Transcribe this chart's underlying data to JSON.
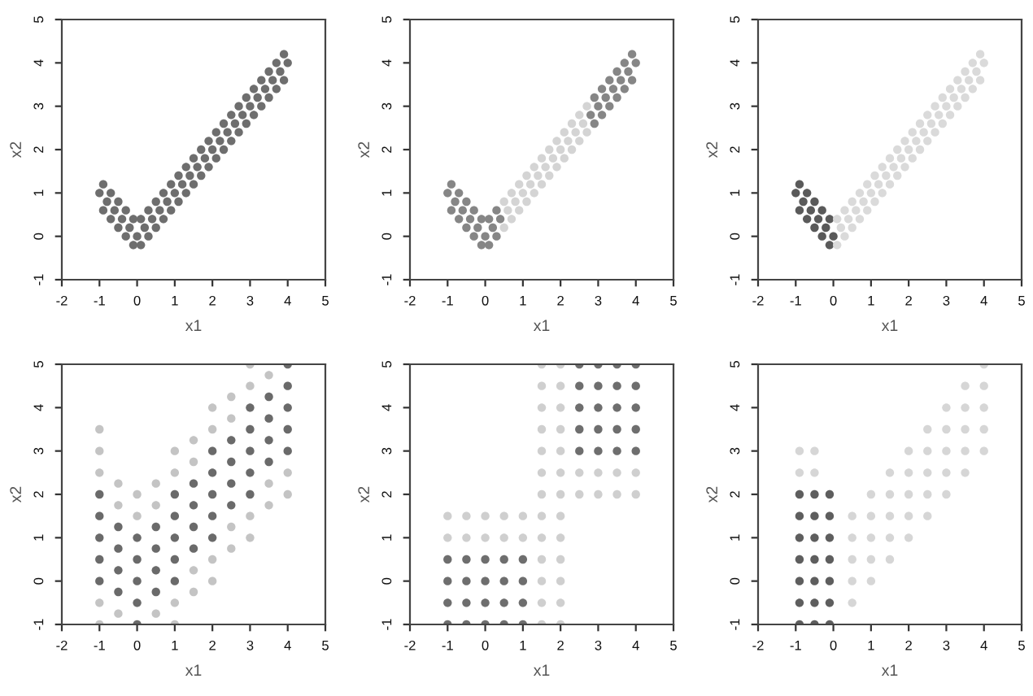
{
  "chart_data": [
    {
      "type": "scatter",
      "xlabel": "x1",
      "ylabel": "x2",
      "xlim": [
        -2,
        5
      ],
      "ylim": [
        -1,
        5
      ],
      "xticks": [
        -2,
        -1,
        0,
        1,
        2,
        3,
        4,
        5
      ],
      "yticks": [
        -1,
        0,
        1,
        2,
        3,
        4,
        5
      ],
      "marker": "circle",
      "series": [
        {
          "color": "#6e6e6e",
          "x": [
            -1,
            -0.8,
            -0.6,
            -0.4,
            -0.2,
            0,
            0.2,
            0.4,
            0.6,
            0.8,
            1,
            1.2,
            1.4,
            1.6,
            1.8,
            2,
            2.2,
            2.4,
            2.6,
            2.8,
            3,
            3.2,
            3.4,
            3.6,
            3.8,
            4,
            -0.9,
            -0.7,
            -0.5,
            -0.3,
            -0.1,
            0.1,
            0.3,
            0.5,
            0.7,
            0.9,
            1.1,
            1.3,
            1.5,
            1.7,
            1.9,
            2.1,
            2.3,
            2.5,
            2.7,
            2.9,
            3.1,
            3.3,
            3.5,
            3.7,
            3.9,
            -0.9,
            -0.7,
            -0.5,
            -0.3,
            -0.1,
            0.1,
            0.3,
            0.5,
            0.7,
            0.9,
            1.1,
            1.3,
            1.5,
            1.7,
            1.9,
            2.1,
            2.3,
            2.5,
            2.7,
            2.9,
            3.1,
            3.3,
            3.5,
            3.7,
            3.9
          ],
          "values": [
            1,
            0.8,
            0.6,
            0.4,
            0.2,
            0,
            0.2,
            0.4,
            0.6,
            0.8,
            1,
            1.2,
            1.4,
            1.6,
            1.8,
            2,
            2.2,
            2.4,
            2.6,
            2.8,
            3,
            3.2,
            3.4,
            3.6,
            3.8,
            4,
            0.6,
            0.4,
            0.2,
            0,
            -0.2,
            -0.2,
            0,
            0.2,
            0.4,
            0.6,
            0.8,
            1,
            1.2,
            1.4,
            1.6,
            1.8,
            2,
            2.2,
            2.4,
            2.6,
            2.8,
            3,
            3.2,
            3.4,
            3.6,
            1.2,
            1,
            0.8,
            0.6,
            0.4,
            0.4,
            0.6,
            0.8,
            1,
            1.2,
            1.4,
            1.6,
            1.8,
            2,
            2.2,
            2.4,
            2.6,
            2.8,
            3,
            3.2,
            3.4,
            3.6,
            3.8,
            4,
            4.2
          ]
        }
      ]
    },
    {
      "type": "scatter",
      "xlabel": "x1",
      "ylabel": "x2",
      "xlim": [
        -2,
        5
      ],
      "ylim": [
        -1,
        5
      ],
      "xticks": [
        -2,
        -1,
        0,
        1,
        2,
        3,
        4,
        5
      ],
      "yticks": [
        -1,
        0,
        1,
        2,
        3,
        4,
        5
      ],
      "marker": "circle",
      "series": [
        {
          "color": "#868686",
          "x": [
            -1,
            -0.8,
            -0.6,
            -0.4,
            -0.2,
            0,
            0.2,
            0.4,
            2.8,
            3,
            3.2,
            3.4,
            3.6,
            3.8,
            4,
            -0.9,
            -0.7,
            -0.5,
            -0.3,
            -0.1,
            0.1,
            0.3,
            2.9,
            3.1,
            3.3,
            3.5,
            3.7,
            3.9,
            -0.9,
            -0.7,
            -0.5,
            -0.3,
            -0.1,
            0.1,
            0.3,
            2.9,
            3.1,
            3.3,
            3.5,
            3.7,
            3.9
          ],
          "values": [
            1,
            0.8,
            0.6,
            0.4,
            0.2,
            0,
            0.2,
            0.4,
            2.8,
            3,
            3.2,
            3.4,
            3.6,
            3.8,
            4,
            0.6,
            0.4,
            0.2,
            0,
            -0.2,
            -0.2,
            0,
            2.6,
            2.8,
            3,
            3.2,
            3.4,
            3.6,
            1.2,
            1,
            0.8,
            0.6,
            0.4,
            0.4,
            0.6,
            3.2,
            3.4,
            3.6,
            3.8,
            4,
            4.2
          ]
        },
        {
          "color": "#d4d4d4",
          "x": [
            0.6,
            0.8,
            1,
            1.2,
            1.4,
            1.6,
            1.8,
            2,
            2.2,
            2.4,
            2.6,
            0.5,
            0.7,
            0.9,
            1.1,
            1.3,
            1.5,
            1.7,
            1.9,
            2.1,
            2.3,
            2.5,
            2.7,
            0.5,
            0.7,
            0.9,
            1.1,
            1.3,
            1.5,
            1.7,
            1.9,
            2.1,
            2.3,
            2.5,
            2.7
          ],
          "values": [
            0.6,
            0.8,
            1,
            1.2,
            1.4,
            1.6,
            1.8,
            2,
            2.2,
            2.4,
            2.6,
            0.2,
            0.4,
            0.6,
            0.8,
            1,
            1.2,
            1.4,
            1.6,
            1.8,
            2,
            2.2,
            2.4,
            0.8,
            1,
            1.2,
            1.4,
            1.6,
            1.8,
            2,
            2.2,
            2.4,
            2.6,
            2.8,
            3
          ]
        }
      ]
    },
    {
      "type": "scatter",
      "xlabel": "x1",
      "ylabel": "x2",
      "xlim": [
        -2,
        5
      ],
      "ylim": [
        -1,
        5
      ],
      "xticks": [
        -2,
        -1,
        0,
        1,
        2,
        3,
        4,
        5
      ],
      "yticks": [
        -1,
        0,
        1,
        2,
        3,
        4,
        5
      ],
      "marker": "circle",
      "series": [
        {
          "color": "#5a5a5a",
          "x": [
            -1,
            -0.8,
            -0.6,
            -0.4,
            -0.2,
            0,
            -0.9,
            -0.7,
            -0.5,
            -0.3,
            -0.1,
            -0.9,
            -0.7,
            -0.5,
            -0.3,
            -0.1
          ],
          "values": [
            1,
            0.8,
            0.6,
            0.4,
            0.2,
            0,
            0.6,
            0.4,
            0.2,
            0,
            -0.2,
            1.2,
            1,
            0.8,
            0.6,
            0.4
          ]
        },
        {
          "color": "#dadada",
          "x": [
            0.2,
            0.4,
            0.6,
            0.8,
            1,
            1.2,
            1.4,
            1.6,
            1.8,
            2,
            2.2,
            2.4,
            2.6,
            2.8,
            3,
            3.2,
            3.4,
            3.6,
            3.8,
            4,
            0.1,
            0.3,
            0.5,
            0.7,
            0.9,
            1.1,
            1.3,
            1.5,
            1.7,
            1.9,
            2.1,
            2.3,
            2.5,
            2.7,
            2.9,
            3.1,
            3.3,
            3.5,
            3.7,
            3.9,
            0.1,
            0.3,
            0.5,
            0.7,
            0.9,
            1.1,
            1.3,
            1.5,
            1.7,
            1.9,
            2.1,
            2.3,
            2.5,
            2.7,
            2.9,
            3.1,
            3.3,
            3.5,
            3.7,
            3.9
          ],
          "values": [
            0.2,
            0.4,
            0.6,
            0.8,
            1,
            1.2,
            1.4,
            1.6,
            1.8,
            2,
            2.2,
            2.4,
            2.6,
            2.8,
            3,
            3.2,
            3.4,
            3.6,
            3.8,
            4,
            -0.2,
            0,
            0.2,
            0.4,
            0.6,
            0.8,
            1,
            1.2,
            1.4,
            1.6,
            1.8,
            2,
            2.2,
            2.4,
            2.6,
            2.8,
            3,
            3.2,
            3.4,
            3.6,
            0.4,
            0.6,
            0.8,
            1,
            1.2,
            1.4,
            1.6,
            1.8,
            2,
            2.2,
            2.4,
            2.6,
            2.8,
            3,
            3.2,
            3.4,
            3.6,
            3.8,
            4,
            4.2
          ]
        }
      ]
    },
    {
      "type": "scatter",
      "xlabel": "x1",
      "ylabel": "x2",
      "xlim": [
        -2,
        5
      ],
      "ylim": [
        -1,
        5
      ],
      "xticks": [
        -2,
        -1,
        0,
        1,
        2,
        3,
        4,
        5
      ],
      "yticks": [
        -1,
        0,
        1,
        2,
        3,
        4,
        5
      ],
      "marker": "circle",
      "series": [
        {
          "color": "#6a6a6a",
          "x": [
            -1,
            -1,
            -1,
            -1,
            -1,
            -0.5,
            -0.5,
            -0.5,
            -0.5,
            0,
            0,
            0,
            0,
            0,
            0.5,
            0.5,
            0.5,
            0.5,
            1,
            1,
            1,
            1,
            1,
            1.5,
            1.5,
            1.5,
            1.5,
            2,
            2,
            2,
            2,
            2,
            2.5,
            2.5,
            2.5,
            2.5,
            3,
            3,
            3,
            3,
            3,
            3.5,
            3.5,
            3.5,
            3.5,
            4,
            4,
            4,
            4,
            4
          ],
          "values": [
            0,
            0.5,
            1,
            1.5,
            2,
            -0.25,
            0.25,
            0.75,
            1.25,
            -1,
            -0.5,
            0,
            0.5,
            1,
            -0.25,
            0.25,
            0.75,
            1.25,
            0,
            0.5,
            1,
            1.5,
            2,
            0.75,
            1.25,
            1.75,
            2.25,
            1,
            1.5,
            2,
            2.5,
            3,
            1.75,
            2.25,
            2.75,
            3.25,
            2,
            2.5,
            3,
            3.5,
            4,
            2.75,
            3.25,
            3.75,
            4.25,
            3,
            3.5,
            4,
            4.5,
            5
          ]
        },
        {
          "color": "#c4c4c4",
          "x": [
            -1,
            -1,
            -1,
            -1,
            -1,
            -0.5,
            -0.5,
            -0.5,
            0,
            0,
            0.5,
            0.5,
            0.5,
            1,
            1,
            1,
            1,
            1.5,
            1.5,
            1.5,
            1.5,
            2,
            2,
            2,
            2,
            2.5,
            2.5,
            2.5,
            2.5,
            3,
            3,
            3,
            3,
            3.5,
            3.5,
            3.5,
            4,
            4
          ],
          "values": [
            -1,
            -0.5,
            2.5,
            3,
            3.5,
            -0.75,
            1.75,
            2.25,
            1.5,
            2,
            -0.75,
            1.75,
            2.25,
            -1,
            -0.5,
            2.5,
            3,
            -0.25,
            0.25,
            2.75,
            3.25,
            0,
            0.5,
            3.5,
            4,
            0.75,
            1.25,
            3.75,
            4.25,
            1,
            1.5,
            4.5,
            5,
            1.75,
            2.25,
            4.75,
            2,
            2.5
          ]
        }
      ]
    },
    {
      "type": "scatter",
      "xlabel": "x1",
      "ylabel": "x2",
      "xlim": [
        -2,
        5
      ],
      "ylim": [
        -1,
        5
      ],
      "xticks": [
        -2,
        -1,
        0,
        1,
        2,
        3,
        4,
        5
      ],
      "yticks": [
        -1,
        0,
        1,
        2,
        3,
        4,
        5
      ],
      "marker": "circle",
      "series": [
        {
          "color": "#6e6e6e",
          "x": [
            -1,
            -1,
            -1,
            -1,
            -0.5,
            -0.5,
            -0.5,
            -0.5,
            0,
            0,
            0,
            0,
            0.5,
            0.5,
            0.5,
            0.5,
            1,
            1,
            1,
            1,
            2.5,
            2.5,
            2.5,
            2.5,
            2.5,
            3,
            3,
            3,
            3,
            3,
            3.5,
            3.5,
            3.5,
            3.5,
            3.5,
            4,
            4,
            4,
            4,
            4
          ],
          "values": [
            -1,
            -0.5,
            0,
            0.5,
            -1,
            -0.5,
            0,
            0.5,
            -1,
            -0.5,
            0,
            0.5,
            -1,
            -0.5,
            0,
            0.5,
            -1,
            -0.5,
            0,
            0.5,
            3,
            3.5,
            4,
            4.5,
            5,
            3,
            3.5,
            4,
            4.5,
            5,
            3,
            3.5,
            4,
            4.5,
            5,
            3,
            3.5,
            4,
            4.5,
            5
          ]
        },
        {
          "color": "#cfcfcf",
          "x": [
            -1,
            -1,
            -0.5,
            -0.5,
            0,
            0,
            0.5,
            0.5,
            1,
            1,
            1.5,
            1.5,
            1.5,
            1.5,
            1.5,
            1.5,
            2,
            2,
            2,
            2,
            2,
            2,
            1.5,
            1.5,
            1.5,
            1.5,
            1.5,
            1.5,
            1.5,
            2,
            2,
            2,
            2,
            2,
            2,
            2,
            2.5,
            2.5,
            3,
            3,
            3.5,
            3.5,
            4,
            4
          ],
          "values": [
            1,
            1.5,
            1,
            1.5,
            1,
            1.5,
            1,
            1.5,
            1,
            1.5,
            -1,
            -0.5,
            0,
            0.5,
            1,
            1.5,
            -1,
            -0.5,
            0,
            0.5,
            1,
            1.5,
            2,
            2.5,
            3,
            3.5,
            4,
            4.5,
            5,
            2,
            2.5,
            3,
            3.5,
            4,
            4.5,
            5,
            2,
            2.5,
            2,
            2.5,
            2,
            2.5,
            2,
            2.5
          ]
        }
      ]
    },
    {
      "type": "scatter",
      "xlabel": "x1",
      "ylabel": "x2",
      "xlim": [
        -2,
        5
      ],
      "ylim": [
        -1,
        5
      ],
      "xticks": [
        -2,
        -1,
        0,
        1,
        2,
        3,
        4,
        5
      ],
      "yticks": [
        -1,
        0,
        1,
        2,
        3,
        4,
        5
      ],
      "marker": "circle",
      "series": [
        {
          "color": "#5e5e5e",
          "x": [
            -0.9,
            -0.9,
            -0.9,
            -0.9,
            -0.9,
            -0.9,
            -0.9,
            -0.5,
            -0.5,
            -0.5,
            -0.5,
            -0.5,
            -0.5,
            -0.5,
            -0.1,
            -0.1,
            -0.1,
            -0.1,
            -0.1,
            -0.1,
            -0.1
          ],
          "values": [
            -1,
            -0.5,
            0,
            0.5,
            1,
            1.5,
            2,
            -1,
            -0.5,
            0,
            0.5,
            1,
            1.5,
            2,
            -1,
            -0.5,
            0,
            0.5,
            1,
            1.5,
            2
          ]
        },
        {
          "color": "#d6d6d6",
          "x": [
            -0.9,
            -0.9,
            -0.5,
            -0.5,
            0.5,
            0.5,
            0.5,
            0.5,
            0.5,
            1,
            1,
            1,
            1,
            1,
            1.5,
            1.5,
            1.5,
            1.5,
            1.5,
            2,
            2,
            2,
            2,
            2,
            2.5,
            2.5,
            2.5,
            2.5,
            2.5,
            3,
            3,
            3,
            3,
            3,
            3.5,
            3.5,
            3.5,
            3.5,
            3.5,
            4,
            4,
            4,
            4,
            4
          ],
          "values": [
            2.5,
            3,
            2.5,
            3,
            -0.5,
            0,
            0.5,
            1,
            1.5,
            0,
            0.5,
            1,
            1.5,
            2,
            0.5,
            1,
            1.5,
            2,
            2.5,
            1,
            1.5,
            2,
            2.5,
            3,
            1.5,
            2,
            2.5,
            3,
            3.5,
            2,
            2.5,
            3,
            3.5,
            4,
            2.5,
            3,
            3.5,
            4,
            4.5,
            3,
            3.5,
            4,
            4.5,
            5
          ]
        }
      ]
    }
  ]
}
